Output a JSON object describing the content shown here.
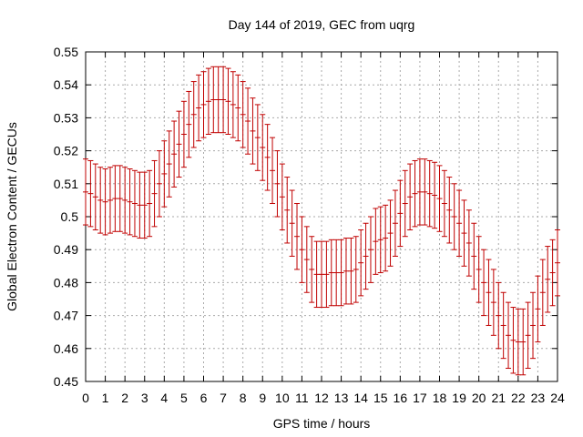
{
  "chart_data": {
    "type": "line",
    "title": "Day 144 of 2019, GEC from uqrg",
    "xlabel": "GPS time / hours",
    "ylabel": "Global Electron Content / GECUs",
    "xlim": [
      0,
      24
    ],
    "ylim": [
      0.45,
      0.55
    ],
    "x_ticks": [
      "0",
      "1",
      "2",
      "3",
      "4",
      "5",
      "6",
      "7",
      "8",
      "9",
      "10",
      "11",
      "12",
      "13",
      "14",
      "15",
      "16",
      "17",
      "18",
      "19",
      "20",
      "21",
      "22",
      "23",
      "24"
    ],
    "y_ticks": [
      "0.45",
      "0.46",
      "0.47",
      "0.48",
      "0.49",
      "0.5",
      "0.51",
      "0.52",
      "0.53",
      "0.54",
      "0.55"
    ],
    "grid": true,
    "error_bar": 0.01,
    "series": [
      {
        "name": "GEC",
        "color": "#c00000",
        "x": [
          0,
          0.25,
          0.5,
          0.75,
          1,
          1.25,
          1.5,
          1.75,
          2,
          2.25,
          2.5,
          2.75,
          3,
          3.25,
          3.5,
          3.75,
          4,
          4.25,
          4.5,
          4.75,
          5,
          5.25,
          5.5,
          5.75,
          6,
          6.25,
          6.5,
          6.75,
          7,
          7.25,
          7.5,
          7.75,
          8,
          8.25,
          8.5,
          8.75,
          9,
          9.25,
          9.5,
          9.75,
          10,
          10.25,
          10.5,
          10.75,
          11,
          11.25,
          11.5,
          11.75,
          12,
          12.25,
          12.5,
          12.75,
          13,
          13.25,
          13.5,
          13.75,
          14,
          14.25,
          14.5,
          14.75,
          15,
          15.25,
          15.5,
          15.75,
          16,
          16.25,
          16.5,
          16.75,
          17,
          17.25,
          17.5,
          17.75,
          18,
          18.25,
          18.5,
          18.75,
          19,
          19.25,
          19.5,
          19.75,
          20,
          20.25,
          20.5,
          20.75,
          21,
          21.25,
          21.5,
          21.75,
          22,
          22.25,
          22.5,
          22.75,
          23,
          23.25,
          23.5,
          23.75,
          24
        ],
        "values": [
          0.5075,
          0.507,
          0.506,
          0.505,
          0.5045,
          0.505,
          0.5055,
          0.5055,
          0.505,
          0.5045,
          0.504,
          0.5035,
          0.5035,
          0.504,
          0.507,
          0.51,
          0.513,
          0.516,
          0.519,
          0.522,
          0.525,
          0.528,
          0.531,
          0.533,
          0.534,
          0.535,
          0.5355,
          0.5355,
          0.5355,
          0.535,
          0.534,
          0.533,
          0.531,
          0.529,
          0.526,
          0.524,
          0.521,
          0.518,
          0.514,
          0.51,
          0.506,
          0.502,
          0.498,
          0.494,
          0.49,
          0.487,
          0.484,
          0.4825,
          0.4825,
          0.4825,
          0.483,
          0.483,
          0.483,
          0.4835,
          0.4835,
          0.484,
          0.486,
          0.488,
          0.49,
          0.4925,
          0.493,
          0.4935,
          0.495,
          0.498,
          0.501,
          0.504,
          0.506,
          0.507,
          0.5075,
          0.5075,
          0.507,
          0.5065,
          0.5055,
          0.504,
          0.502,
          0.5,
          0.498,
          0.495,
          0.492,
          0.488,
          0.484,
          0.48,
          0.477,
          0.474,
          0.47,
          0.467,
          0.464,
          0.4625,
          0.462,
          0.462,
          0.464,
          0.467,
          0.472,
          0.477,
          0.481,
          0.483,
          0.486
        ]
      }
    ]
  }
}
